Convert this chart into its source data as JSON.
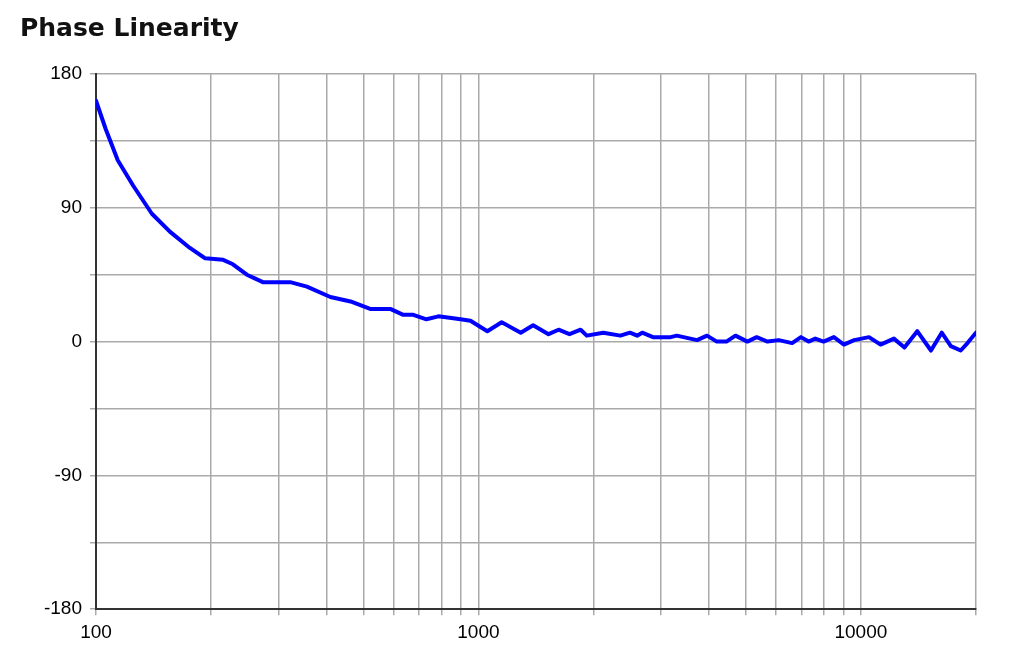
{
  "chart_data": {
    "type": "line",
    "title": "Phase Linearity",
    "x": [
      100,
      106,
      114,
      125,
      140,
      156,
      176,
      193,
      215,
      228,
      248,
      273,
      322,
      356,
      410,
      463,
      521,
      588,
      636,
      676,
      731,
      786,
      898,
      953,
      1055,
      1150,
      1290,
      1390,
      1525,
      1620,
      1730,
      1850,
      1920,
      2120,
      2350,
      2490,
      2600,
      2680,
      2860,
      3180,
      3300,
      3730,
      3960,
      4200,
      4450,
      4700,
      5050,
      5340,
      5700,
      6100,
      6610,
      6970,
      7300,
      7600,
      7990,
      8500,
      9030,
      9600,
      10500,
      11260,
      12200,
      13000,
      14040,
      15250,
      16270,
      17190,
      18240,
      19000,
      20000
    ],
    "series": [
      {
        "color": "#0000ff",
        "values": [
          162,
          143,
          122,
          105,
          86,
          74,
          63,
          56,
          55,
          52,
          45,
          40,
          40,
          37,
          30,
          27,
          22,
          22,
          18,
          18,
          15,
          17,
          15,
          14,
          7,
          13,
          6,
          11,
          5,
          8,
          5,
          8,
          4,
          6,
          4,
          6,
          4,
          6,
          3,
          3,
          4,
          1,
          4,
          0,
          0,
          4,
          0,
          3,
          0,
          1,
          -1,
          3,
          0,
          2,
          0,
          3,
          -2,
          1,
          3,
          -2,
          2,
          -4,
          7,
          -6,
          6,
          -3,
          -6,
          -1,
          6
        ]
      }
    ],
    "log": "x",
    "xlim": [
      100,
      20000
    ],
    "xticks": [
      100,
      {
        "value": 200,
        "label": null
      },
      {
        "value": 300,
        "label": null
      },
      {
        "value": 400,
        "label": null
      },
      {
        "value": 500,
        "label": null
      },
      {
        "value": 600,
        "label": null
      },
      {
        "value": 700,
        "label": null
      },
      {
        "value": 800,
        "label": null
      },
      {
        "value": 900,
        "label": null
      },
      1000,
      {
        "value": 2000,
        "label": null
      },
      {
        "value": 3000,
        "label": null
      },
      {
        "value": 4000,
        "label": null
      },
      {
        "value": 5000,
        "label": null
      },
      {
        "value": 6000,
        "label": null
      },
      {
        "value": 7000,
        "label": null
      },
      {
        "value": 8000,
        "label": null
      },
      {
        "value": 9000,
        "label": null
      },
      10000,
      {
        "value": 20000,
        "label": null
      }
    ],
    "ylim": [
      -180,
      180
    ],
    "yticks": [
      -180,
      {
        "value": -135,
        "label": null
      },
      -90,
      {
        "value": -45,
        "label": null
      },
      0,
      {
        "value": 45,
        "label": null
      },
      90,
      {
        "value": 135,
        "label": null
      },
      180
    ],
    "grid": true,
    "marker": "none",
    "line_style": "solid"
  }
}
